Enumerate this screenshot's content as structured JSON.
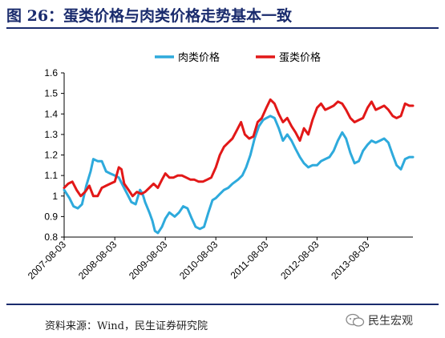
{
  "header": {
    "title": "图 26：蛋类价格与肉类价格走势基本一致"
  },
  "footer": {
    "source": "资料来源：Wind，民生证券研究院",
    "watermark": "民生宏观"
  },
  "chart_data": {
    "type": "line",
    "title": "",
    "xlabel": "",
    "ylabel": "",
    "ylim": [
      0.8,
      1.6
    ],
    "yticks": [
      "1.6",
      "1.5",
      "1.4",
      "1.3",
      "1.2",
      "1.1",
      "1",
      "0.9",
      "0.8"
    ],
    "xticks": [
      "2007-08-03",
      "2008-08-03",
      "2009-08-03",
      "2010-08-03",
      "2011-08-03",
      "2012-08-03",
      "2013-08-03"
    ],
    "x_range": [
      "2007-08-03",
      "2014-06-27"
    ],
    "grid": false,
    "legend_position": "top",
    "series": [
      {
        "name": "肉类价格",
        "color": "#2eaadc",
        "points": [
          [
            "2007-08-03",
            1.03
          ],
          [
            "2007-09-10",
            0.99
          ],
          [
            "2007-10-10",
            0.95
          ],
          [
            "2007-11-10",
            0.94
          ],
          [
            "2007-12-10",
            0.96
          ],
          [
            "2008-01-10",
            1.05
          ],
          [
            "2008-02-10",
            1.12
          ],
          [
            "2008-03-01",
            1.18
          ],
          [
            "2008-04-01",
            1.17
          ],
          [
            "2008-05-01",
            1.17
          ],
          [
            "2008-06-01",
            1.12
          ],
          [
            "2008-07-01",
            1.11
          ],
          [
            "2008-08-03",
            1.1
          ],
          [
            "2008-09-01",
            1.09
          ],
          [
            "2008-10-01",
            1.05
          ],
          [
            "2008-11-01",
            1.01
          ],
          [
            "2008-12-01",
            0.97
          ],
          [
            "2009-01-01",
            0.96
          ],
          [
            "2009-02-01",
            1.03
          ],
          [
            "2009-02-20",
            1.01
          ],
          [
            "2009-03-10",
            0.97
          ],
          [
            "2009-04-10",
            0.92
          ],
          [
            "2009-05-01",
            0.88
          ],
          [
            "2009-05-20",
            0.83
          ],
          [
            "2009-06-10",
            0.82
          ],
          [
            "2009-07-10",
            0.85
          ],
          [
            "2009-08-03",
            0.89
          ],
          [
            "2009-09-01",
            0.92
          ],
          [
            "2009-10-10",
            0.9
          ],
          [
            "2009-11-10",
            0.92
          ],
          [
            "2009-12-10",
            0.95
          ],
          [
            "2010-01-10",
            0.94
          ],
          [
            "2010-02-10",
            0.89
          ],
          [
            "2010-03-10",
            0.85
          ],
          [
            "2010-04-10",
            0.84
          ],
          [
            "2010-05-10",
            0.85
          ],
          [
            "2010-06-10",
            0.92
          ],
          [
            "2010-07-10",
            0.98
          ],
          [
            "2010-08-03",
            0.99
          ],
          [
            "2010-09-01",
            1.01
          ],
          [
            "2010-10-01",
            1.03
          ],
          [
            "2010-11-01",
            1.04
          ],
          [
            "2010-12-01",
            1.06
          ],
          [
            "2011-01-10",
            1.08
          ],
          [
            "2011-02-10",
            1.1
          ],
          [
            "2011-03-10",
            1.14
          ],
          [
            "2011-04-10",
            1.2
          ],
          [
            "2011-05-10",
            1.28
          ],
          [
            "2011-06-10",
            1.34
          ],
          [
            "2011-07-10",
            1.37
          ],
          [
            "2011-08-03",
            1.38
          ],
          [
            "2011-09-01",
            1.39
          ],
          [
            "2011-10-01",
            1.38
          ],
          [
            "2011-11-01",
            1.33
          ],
          [
            "2011-12-01",
            1.27
          ],
          [
            "2012-01-01",
            1.3
          ],
          [
            "2012-02-01",
            1.27
          ],
          [
            "2012-03-01",
            1.23
          ],
          [
            "2012-04-01",
            1.19
          ],
          [
            "2012-05-01",
            1.16
          ],
          [
            "2012-06-01",
            1.14
          ],
          [
            "2012-07-01",
            1.15
          ],
          [
            "2012-08-03",
            1.15
          ],
          [
            "2012-09-01",
            1.17
          ],
          [
            "2012-10-01",
            1.18
          ],
          [
            "2012-11-01",
            1.19
          ],
          [
            "2012-12-01",
            1.22
          ],
          [
            "2013-01-01",
            1.27
          ],
          [
            "2013-02-01",
            1.31
          ],
          [
            "2013-03-01",
            1.28
          ],
          [
            "2013-04-01",
            1.21
          ],
          [
            "2013-05-01",
            1.16
          ],
          [
            "2013-06-01",
            1.17
          ],
          [
            "2013-07-01",
            1.22
          ],
          [
            "2013-08-03",
            1.25
          ],
          [
            "2013-09-01",
            1.27
          ],
          [
            "2013-10-01",
            1.26
          ],
          [
            "2013-11-01",
            1.27
          ],
          [
            "2013-12-01",
            1.28
          ],
          [
            "2014-01-01",
            1.26
          ],
          [
            "2014-02-01",
            1.2
          ],
          [
            "2014-03-01",
            1.15
          ],
          [
            "2014-04-01",
            1.13
          ],
          [
            "2014-05-01",
            1.18
          ],
          [
            "2014-06-01",
            1.19
          ],
          [
            "2014-06-27",
            1.19
          ]
        ]
      },
      {
        "name": "蛋类价格",
        "color": "#e21818",
        "points": [
          [
            "2007-08-03",
            1.04
          ],
          [
            "2007-09-01",
            1.06
          ],
          [
            "2007-10-01",
            1.07
          ],
          [
            "2007-11-01",
            1.03
          ],
          [
            "2007-12-01",
            1.0
          ],
          [
            "2008-01-01",
            1.02
          ],
          [
            "2008-02-01",
            1.05
          ],
          [
            "2008-03-01",
            1.0
          ],
          [
            "2008-04-01",
            1.0
          ],
          [
            "2008-05-01",
            1.04
          ],
          [
            "2008-06-01",
            1.05
          ],
          [
            "2008-07-01",
            1.06
          ],
          [
            "2008-08-03",
            1.07
          ],
          [
            "2008-09-01",
            1.14
          ],
          [
            "2008-09-20",
            1.13
          ],
          [
            "2008-10-10",
            1.06
          ],
          [
            "2008-11-10",
            1.03
          ],
          [
            "2008-12-10",
            1.0
          ],
          [
            "2009-01-10",
            1.02
          ],
          [
            "2009-02-10",
            1.01
          ],
          [
            "2009-03-10",
            1.02
          ],
          [
            "2009-04-10",
            1.04
          ],
          [
            "2009-05-10",
            1.06
          ],
          [
            "2009-06-10",
            1.04
          ],
          [
            "2009-07-10",
            1.08
          ],
          [
            "2009-08-03",
            1.11
          ],
          [
            "2009-09-01",
            1.09
          ],
          [
            "2009-10-01",
            1.09
          ],
          [
            "2009-11-01",
            1.1
          ],
          [
            "2009-12-01",
            1.1
          ],
          [
            "2010-01-01",
            1.09
          ],
          [
            "2010-02-01",
            1.08
          ],
          [
            "2010-03-01",
            1.08
          ],
          [
            "2010-04-01",
            1.07
          ],
          [
            "2010-05-01",
            1.07
          ],
          [
            "2010-06-01",
            1.08
          ],
          [
            "2010-07-01",
            1.09
          ],
          [
            "2010-08-03",
            1.14
          ],
          [
            "2010-09-01",
            1.2
          ],
          [
            "2010-10-01",
            1.24
          ],
          [
            "2010-11-01",
            1.26
          ],
          [
            "2010-12-01",
            1.28
          ],
          [
            "2011-01-01",
            1.32
          ],
          [
            "2011-02-01",
            1.36
          ],
          [
            "2011-03-01",
            1.3
          ],
          [
            "2011-04-01",
            1.28
          ],
          [
            "2011-05-01",
            1.29
          ],
          [
            "2011-06-01",
            1.36
          ],
          [
            "2011-07-01",
            1.38
          ],
          [
            "2011-08-03",
            1.43
          ],
          [
            "2011-09-01",
            1.47
          ],
          [
            "2011-10-01",
            1.45
          ],
          [
            "2011-11-01",
            1.4
          ],
          [
            "2011-12-01",
            1.36
          ],
          [
            "2012-01-01",
            1.38
          ],
          [
            "2012-02-01",
            1.34
          ],
          [
            "2012-03-01",
            1.31
          ],
          [
            "2012-04-01",
            1.27
          ],
          [
            "2012-05-01",
            1.33
          ],
          [
            "2012-06-01",
            1.3
          ],
          [
            "2012-07-01",
            1.37
          ],
          [
            "2012-08-03",
            1.43
          ],
          [
            "2012-09-01",
            1.45
          ],
          [
            "2012-10-01",
            1.42
          ],
          [
            "2012-11-01",
            1.43
          ],
          [
            "2012-12-01",
            1.44
          ],
          [
            "2013-01-01",
            1.46
          ],
          [
            "2013-02-01",
            1.45
          ],
          [
            "2013-03-01",
            1.42
          ],
          [
            "2013-04-01",
            1.38
          ],
          [
            "2013-05-01",
            1.36
          ],
          [
            "2013-06-01",
            1.37
          ],
          [
            "2013-07-01",
            1.38
          ],
          [
            "2013-08-03",
            1.43
          ],
          [
            "2013-09-01",
            1.46
          ],
          [
            "2013-10-01",
            1.42
          ],
          [
            "2013-11-01",
            1.43
          ],
          [
            "2013-12-01",
            1.44
          ],
          [
            "2014-01-01",
            1.42
          ],
          [
            "2014-02-01",
            1.39
          ],
          [
            "2014-03-01",
            1.38
          ],
          [
            "2014-04-01",
            1.39
          ],
          [
            "2014-05-01",
            1.45
          ],
          [
            "2014-06-01",
            1.44
          ],
          [
            "2014-06-27",
            1.44
          ]
        ]
      }
    ]
  }
}
